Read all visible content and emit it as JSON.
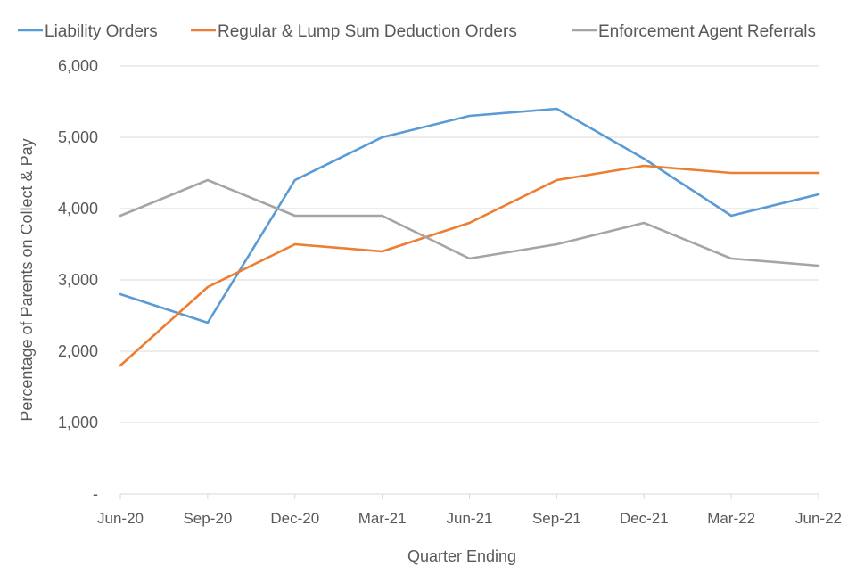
{
  "chart_data": {
    "type": "line",
    "title": "",
    "xlabel": "Quarter Ending",
    "ylabel": "Percentage of Parents on Collect & Pay",
    "ylim": [
      0,
      6000
    ],
    "yticks": [
      0,
      1000,
      2000,
      3000,
      4000,
      5000,
      6000
    ],
    "ytick_labels": [
      "-",
      "1,000",
      "2,000",
      "3,000",
      "4,000",
      "5,000",
      "6,000"
    ],
    "grid": true,
    "legend_position": "top",
    "categories": [
      "Jun-20",
      "Sep-20",
      "Dec-20",
      "Mar-21",
      "Jun-21",
      "Sep-21",
      "Dec-21",
      "Mar-22",
      "Jun-22"
    ],
    "series": [
      {
        "name": "Liability Orders",
        "color": "#5B9BD5",
        "values": [
          2800,
          2400,
          4400,
          5000,
          5300,
          5400,
          4700,
          3900,
          4200
        ]
      },
      {
        "name": "Regular & Lump Sum Deduction Orders",
        "color": "#ED7D31",
        "values": [
          1800,
          2900,
          3500,
          3400,
          3800,
          4400,
          4600,
          4500,
          4500
        ]
      },
      {
        "name": "Enforcement Agent Referrals",
        "color": "#A5A5A5",
        "values": [
          3900,
          4400,
          3900,
          3900,
          3300,
          3500,
          3800,
          3300,
          3200
        ]
      }
    ]
  }
}
